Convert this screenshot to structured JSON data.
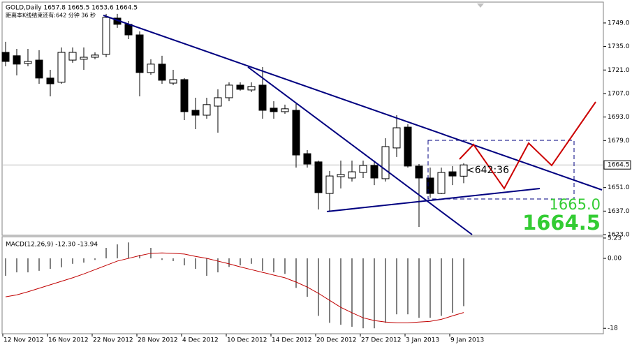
{
  "chart_data": [
    {
      "type": "candlestick",
      "title": "GOLD,Daily  1657.8 1665.5 1653.6 1664.5",
      "subtitle": "距离本K线结束还有:642 分钟 36 秒",
      "categories": [
        "12 Nov 2012",
        null,
        null,
        null,
        "16 Nov 2012",
        null,
        null,
        null,
        "22 Nov 2012",
        null,
        null,
        null,
        "28 Nov 2012",
        null,
        null,
        null,
        "4 Dec 2012",
        null,
        null,
        null,
        "10 Dec 2012",
        null,
        null,
        null,
        "14 Dec 2012",
        null,
        null,
        null,
        "20 Dec 2012",
        null,
        null,
        null,
        "27 Dec 2012",
        null,
        null,
        null,
        "3 Jan 2013",
        null,
        null,
        null,
        "9 Jan 2013",
        null
      ],
      "open": [
        1731.5,
        1729.5,
        1724.9,
        1726.9,
        1716.2,
        1713.7,
        1726.9,
        1727.4,
        1728.6,
        1730.3,
        1751.9,
        1748.2,
        1741.9,
        1719.5,
        1724.5,
        1713.2,
        1715.3,
        1697.0,
        1694.1,
        1699.5,
        1704.5,
        1712.0,
        1709.1,
        1712.0,
        1698.3,
        1696.2,
        1697.0,
        1671.2,
        1666.3,
        1647.5,
        1657.5,
        1656.7,
        1660.0,
        1664.2,
        1656.3,
        1674.6,
        1687.0,
        1663.8,
        1656.7,
        1647.5,
        1660.4,
        1657.8
      ],
      "high": [
        1737.8,
        1733.6,
        1733.6,
        1732.8,
        1721.1,
        1734.4,
        1734.4,
        1734.4,
        1731.5,
        1754.4,
        1754.4,
        1750.2,
        1744.0,
        1727.4,
        1729.5,
        1721.1,
        1716.2,
        1704.5,
        1704.5,
        1709.5,
        1713.7,
        1713.7,
        1713.7,
        1722.8,
        1702.4,
        1700.4,
        1701.2,
        1673.3,
        1667.1,
        1660.9,
        1667.1,
        1667.1,
        1667.1,
        1667.1,
        1680.4,
        1694.1,
        1688.7,
        1665.0,
        1662.9,
        1662.9,
        1663.8,
        1665.5
      ],
      "low": [
        1723.2,
        1717.8,
        1723.2,
        1712.8,
        1705.3,
        1712.8,
        1725.3,
        1721.1,
        1727.4,
        1728.6,
        1746.1,
        1739.4,
        1705.3,
        1718.2,
        1712.8,
        1712.0,
        1691.2,
        1685.8,
        1692.0,
        1683.7,
        1702.4,
        1708.7,
        1707.8,
        1692.0,
        1692.0,
        1694.9,
        1662.9,
        1662.9,
        1638.0,
        1636.7,
        1650.5,
        1654.6,
        1656.7,
        1652.5,
        1654.6,
        1669.2,
        1662.9,
        1627.6,
        1645.0,
        1647.1,
        1652.5,
        1653.6
      ],
      "close": [
        1726.1,
        1724.5,
        1726.1,
        1716.2,
        1712.8,
        1731.5,
        1731.5,
        1728.6,
        1729.9,
        1752.3,
        1748.2,
        1741.9,
        1719.5,
        1724.5,
        1714.9,
        1715.3,
        1696.2,
        1694.1,
        1700.4,
        1704.5,
        1712.0,
        1709.5,
        1711.2,
        1697.0,
        1696.2,
        1697.9,
        1670.4,
        1665.0,
        1648.0,
        1657.9,
        1658.8,
        1660.4,
        1664.2,
        1656.7,
        1675.4,
        1686.6,
        1663.8,
        1656.7,
        1647.5,
        1660.0,
        1657.9,
        1664.5
      ],
      "up_color": "#ffffff",
      "down_color": "#000000",
      "ylim": [
        1622.6,
        1760.6
      ],
      "yticks": [
        {
          "value": 1749,
          "label": "1749.0"
        },
        {
          "value": 1735,
          "label": "1735.0"
        },
        {
          "value": 1721,
          "label": "1721.0"
        },
        {
          "value": 1707,
          "label": "1707.0"
        },
        {
          "value": 1693,
          "label": "1693.0"
        },
        {
          "value": 1679,
          "label": "1679.0"
        },
        {
          "value": 1651,
          "label": "1651.0"
        },
        {
          "value": 1637,
          "label": "1637.0"
        },
        {
          "value": 1623,
          "label": "1623.0"
        }
      ],
      "annotations": [
        "<642:36",
        "1665.0"
      ]
    },
    {
      "type": "macd",
      "title": "MACD(12,26,9) -12.30 -13.94",
      "series": [
        {
          "style": "bar",
          "color": "#808080",
          "values": [
            -4.5,
            -3.6,
            -3.6,
            -3.2,
            -2.7,
            -2.3,
            -1.4,
            -1.1,
            -0.4,
            2.7,
            3.6,
            4.1,
            0.9,
            2.7,
            -0.4,
            -0.7,
            -1.8,
            -2.7,
            -4.5,
            -3.6,
            -2.2,
            -1.8,
            -1.4,
            -3.2,
            -3.6,
            -4.0,
            -7.6,
            -9.9,
            -14.8,
            -16.6,
            -17.1,
            -17.6,
            -18.0,
            -18.0,
            -16.6,
            -14.4,
            -14.4,
            -15.3,
            -15.3,
            -14.8,
            -14.0,
            -12.3
          ]
        },
        {
          "style": "line",
          "color": "#c00000",
          "values": [
            -9.9,
            -9.4,
            -8.6,
            -7.7,
            -6.8,
            -5.9,
            -5.0,
            -4.0,
            -2.9,
            -1.8,
            -0.7,
            0.0,
            0.7,
            1.3,
            1.4,
            1.3,
            1.1,
            0.5,
            0.0,
            -0.7,
            -1.4,
            -2.2,
            -2.9,
            -3.6,
            -4.3,
            -5.0,
            -6.1,
            -7.4,
            -9.0,
            -10.8,
            -12.6,
            -14.0,
            -15.3,
            -16.0,
            -16.4,
            -16.6,
            -16.6,
            -16.4,
            -16.2,
            -15.7,
            -14.8,
            -13.94
          ]
        }
      ],
      "ylim": [
        -19.4,
        5.4
      ],
      "yticks": [
        5.23,
        {
          "value": 0,
          "label": "0.00"
        },
        -18
      ]
    }
  ]
}
